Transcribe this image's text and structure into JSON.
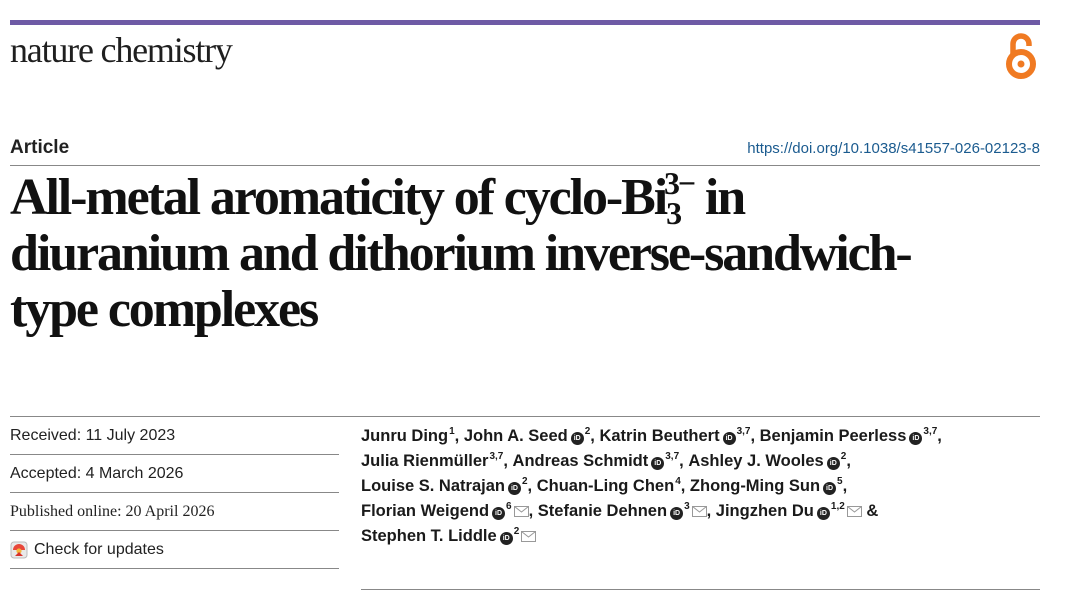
{
  "journal": {
    "name": "nature chemistry"
  },
  "article": {
    "type": "Article",
    "doi": "https://doi.org/10.1038/s41557-026-02123-8",
    "title_line1_pre": "All-metal aromaticity of cyclo-Bi",
    "title_sub": "3",
    "title_sup": "3−",
    "title_line1_post": " in",
    "title_line2": "diuranium and dithorium inverse-sandwich-",
    "title_line3": "type complexes"
  },
  "dates": {
    "received": "Received: 11 July 2023",
    "accepted": "Accepted: 4 March 2026",
    "published": "Published online: 20 April 2026",
    "check_updates": "Check for updates"
  },
  "icons": {
    "open_access": "open-access-lock-icon",
    "orcid": "orcid-icon",
    "email": "envelope-icon",
    "updates": "check-for-updates-icon"
  },
  "colors": {
    "accent_bar": "#6e5aa5",
    "open_access": "#f07a22",
    "doi_link": "#1b5b8f"
  },
  "authors": [
    {
      "name": "Junru Ding",
      "aff": "1",
      "orcid": false,
      "email": false,
      "sep": ", "
    },
    {
      "name": "John A. Seed",
      "aff": "2",
      "orcid": true,
      "email": false,
      "sep": ", "
    },
    {
      "name": "Katrin Beuthert",
      "aff": "3,7",
      "orcid": true,
      "email": false,
      "sep": ", "
    },
    {
      "name": "Benjamin Peerless",
      "aff": "3,7",
      "orcid": true,
      "email": false,
      "sep": ","
    },
    {
      "name": "Julia Rienmüller",
      "aff": "3,7",
      "orcid": false,
      "email": false,
      "sep": ", "
    },
    {
      "name": "Andreas Schmidt",
      "aff": "3,7",
      "orcid": true,
      "email": false,
      "sep": ", "
    },
    {
      "name": "Ashley J. Wooles",
      "aff": "2",
      "orcid": true,
      "email": false,
      "sep": ","
    },
    {
      "name": "Louise S. Natrajan",
      "aff": "2",
      "orcid": true,
      "email": false,
      "sep": ", "
    },
    {
      "name": "Chuan-Ling Chen",
      "aff": "4",
      "orcid": false,
      "email": false,
      "sep": ", "
    },
    {
      "name": "Zhong-Ming Sun",
      "aff": "5",
      "orcid": true,
      "email": false,
      "sep": ","
    },
    {
      "name": "Florian Weigend",
      "aff": "6",
      "orcid": true,
      "email": true,
      "sep": ", "
    },
    {
      "name": "Stefanie Dehnen",
      "aff": "3",
      "orcid": true,
      "email": true,
      "sep": ", "
    },
    {
      "name": "Jingzhen Du",
      "aff": "1,2",
      "orcid": true,
      "email": true,
      "sep": " & "
    },
    {
      "name": "Stephen T. Liddle",
      "aff": "2",
      "orcid": true,
      "email": true,
      "sep": ""
    }
  ],
  "author_line_breaks_after": [
    3,
    6,
    9,
    12
  ]
}
